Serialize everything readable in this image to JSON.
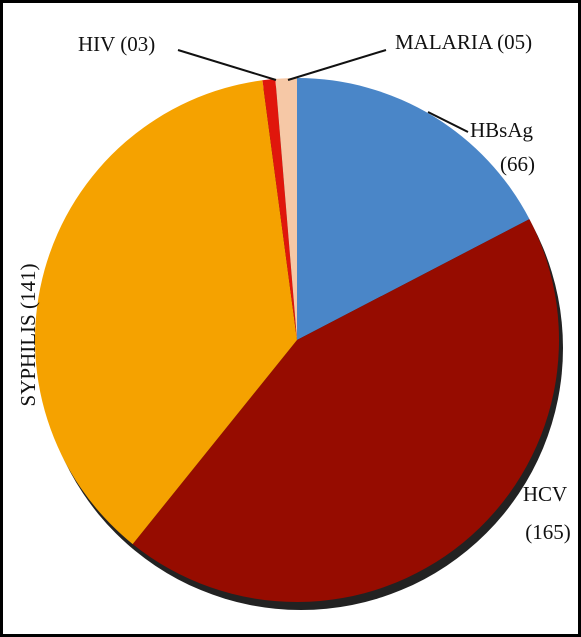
{
  "chart_data": {
    "type": "pie",
    "categories": [
      "HBsAg",
      "HCV",
      "SYPHILIS",
      "HIV",
      "MALARIA"
    ],
    "values": [
      66,
      165,
      141,
      3,
      5
    ],
    "value_labels": [
      "(66)",
      "(165)",
      "(141)",
      "(03)",
      "(05)"
    ],
    "colors": [
      "#4a86c8",
      "#960c00",
      "#f5a200",
      "#e0160c",
      "#f6c8a6"
    ]
  }
}
